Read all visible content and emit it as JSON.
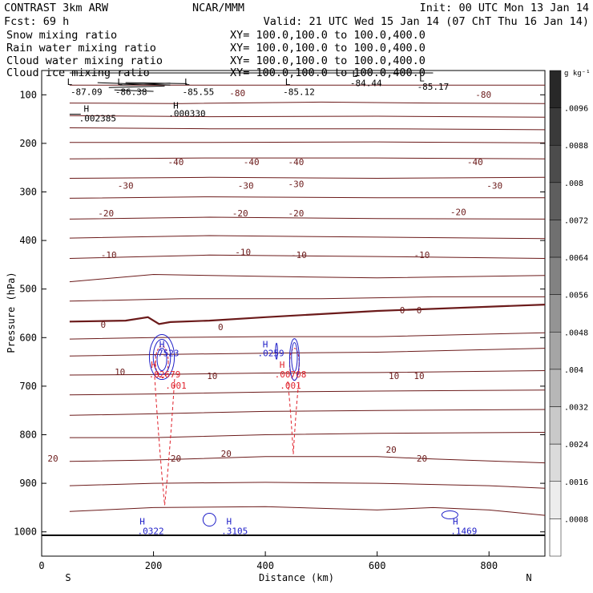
{
  "header": {
    "line1_left": "CONTRAST  3km ARW",
    "line1_center": "NCAR/MMM",
    "line1_right": "Init: 00 UTC Mon 13 Jan 14",
    "line2_left": "Fcst:   69 h",
    "line2_right": "Valid: 21 UTC Wed 15 Jan 14 (07 ChT Thu 16 Jan 14)"
  },
  "fields": [
    {
      "name": "Snow mixing ratio",
      "xy": "XY= 100.0,100.0 to 100.0,400.0",
      "color": "#000000"
    },
    {
      "name": "Rain water mixing ratio",
      "xy": "XY= 100.0,100.0 to 100.0,400.0",
      "color": "#e0202a"
    },
    {
      "name": "Cloud water mixing ratio",
      "xy": "XY= 100.0,100.0 to 100.0,400.0",
      "color": "#2020c8"
    },
    {
      "name": "Cloud ice mixing ratio",
      "xy": "XY= 100.0,100.0 to 100.0,400.0",
      "color": "#000000"
    }
  ],
  "colorbar": {
    "unit": "g kg⁻¹",
    "labels": [
      ".0096",
      ".0088",
      ".008",
      ".0072",
      ".0064",
      ".0056",
      ".0048",
      ".004",
      ".0032",
      ".0024",
      ".0016",
      ".0008"
    ]
  },
  "colors": {
    "temperature": "#6b1a1a",
    "rain": "#e0202a",
    "cloud_water": "#2020c8",
    "cloud_ice": "#000000"
  },
  "chart_data": {
    "type": "contour",
    "xlabel": "Distance (km)",
    "ylabel": "Pressure (hPa)",
    "xlim": [
      0,
      900
    ],
    "ylim": [
      1050,
      50
    ],
    "xticks": [
      0,
      200,
      400,
      600,
      800
    ],
    "yticks": [
      100,
      200,
      300,
      400,
      500,
      600,
      700,
      800,
      900,
      1000
    ],
    "x_endpoints": {
      "left": "S",
      "right": "N"
    },
    "temperature_contours": [
      {
        "p": [
          [
            50,
            80
          ],
          [
            900,
            80
          ]
        ]
      },
      {
        "p": [
          [
            50,
            117
          ],
          [
            250,
            118
          ],
          [
            500,
            115
          ],
          [
            700,
            117
          ],
          [
            900,
            118
          ]
        ]
      },
      {
        "p": [
          [
            50,
            143
          ],
          [
            300,
            145
          ],
          [
            600,
            144
          ],
          [
            900,
            146
          ]
        ]
      },
      {
        "p": [
          [
            50,
            168
          ],
          [
            300,
            170
          ],
          [
            600,
            170
          ],
          [
            900,
            172
          ]
        ]
      },
      {
        "p": [
          [
            50,
            198
          ],
          [
            300,
            198
          ],
          [
            600,
            197
          ],
          [
            900,
            199
          ]
        ]
      },
      {
        "p": [
          [
            50,
            232
          ],
          [
            300,
            230
          ],
          [
            600,
            230
          ],
          [
            900,
            232
          ]
        ]
      },
      {
        "p": [
          [
            50,
            272
          ],
          [
            300,
            270
          ],
          [
            600,
            272
          ],
          [
            900,
            270
          ]
        ]
      },
      {
        "p": [
          [
            50,
            313
          ],
          [
            300,
            310
          ],
          [
            600,
            312
          ],
          [
            900,
            312
          ]
        ]
      },
      {
        "p": [
          [
            50,
            356
          ],
          [
            300,
            352
          ],
          [
            600,
            355
          ],
          [
            900,
            356
          ]
        ]
      },
      {
        "p": [
          [
            50,
            395
          ],
          [
            300,
            390
          ],
          [
            600,
            393
          ],
          [
            900,
            396
          ]
        ]
      },
      {
        "p": [
          [
            50,
            437
          ],
          [
            300,
            430
          ],
          [
            600,
            433
          ],
          [
            900,
            437
          ]
        ]
      },
      {
        "p": [
          [
            50,
            485
          ],
          [
            200,
            470
          ],
          [
            400,
            474
          ],
          [
            600,
            477
          ],
          [
            900,
            472
          ]
        ]
      },
      {
        "p": [
          [
            50,
            525
          ],
          [
            250,
            520
          ],
          [
            500,
            520
          ],
          [
            700,
            516
          ],
          [
            900,
            516
          ]
        ]
      },
      {
        "p": [
          [
            50,
            567
          ],
          [
            150,
            565
          ],
          [
            190,
            558
          ],
          [
            210,
            572
          ],
          [
            230,
            568
          ],
          [
            300,
            565
          ],
          [
            400,
            558
          ],
          [
            600,
            545
          ],
          [
            900,
            532
          ]
        ],
        "thick": true
      },
      {
        "p": [
          [
            50,
            603
          ],
          [
            200,
            600
          ],
          [
            400,
            598
          ],
          [
            600,
            598
          ],
          [
            900,
            590
          ]
        ]
      },
      {
        "p": [
          [
            50,
            638
          ],
          [
            200,
            635
          ],
          [
            400,
            632
          ],
          [
            600,
            630
          ],
          [
            900,
            622
          ]
        ]
      },
      {
        "p": [
          [
            50,
            677
          ],
          [
            200,
            676
          ],
          [
            400,
            673
          ],
          [
            600,
            672
          ],
          [
            900,
            668
          ]
        ]
      },
      {
        "p": [
          [
            50,
            718
          ],
          [
            200,
            716
          ],
          [
            400,
            712
          ],
          [
            600,
            710
          ],
          [
            900,
            708
          ]
        ]
      },
      {
        "p": [
          [
            50,
            760
          ],
          [
            200,
            757
          ],
          [
            400,
            752
          ],
          [
            600,
            750
          ],
          [
            900,
            748
          ]
        ]
      },
      {
        "p": [
          [
            50,
            806
          ],
          [
            200,
            806
          ],
          [
            400,
            800
          ],
          [
            600,
            797
          ],
          [
            900,
            795
          ]
        ]
      },
      {
        "p": [
          [
            50,
            855
          ],
          [
            200,
            852
          ],
          [
            400,
            845
          ],
          [
            600,
            845
          ],
          [
            700,
            850
          ],
          [
            900,
            858
          ]
        ]
      },
      {
        "p": [
          [
            50,
            905
          ],
          [
            200,
            900
          ],
          [
            400,
            898
          ],
          [
            600,
            900
          ],
          [
            800,
            905
          ],
          [
            900,
            910
          ]
        ]
      },
      {
        "p": [
          [
            50,
            958
          ],
          [
            200,
            950
          ],
          [
            400,
            948
          ],
          [
            600,
            955
          ],
          [
            700,
            950
          ],
          [
            800,
            955
          ],
          [
            900,
            966
          ]
        ]
      }
    ],
    "temperature_labels": [
      {
        "t": "-80",
        "x": 350,
        "y": 103
      },
      {
        "t": "-80",
        "x": 790,
        "y": 106
      },
      {
        "t": "-40",
        "x": 240,
        "y": 245
      },
      {
        "t": "-40",
        "x": 375,
        "y": 245
      },
      {
        "t": "-40",
        "x": 455,
        "y": 245
      },
      {
        "t": "-40",
        "x": 775,
        "y": 245
      },
      {
        "t": "-30",
        "x": 150,
        "y": 293
      },
      {
        "t": "-30",
        "x": 365,
        "y": 293
      },
      {
        "t": "-30",
        "x": 455,
        "y": 290
      },
      {
        "t": "-30",
        "x": 810,
        "y": 293
      },
      {
        "t": "-20",
        "x": 115,
        "y": 350
      },
      {
        "t": "-20",
        "x": 355,
        "y": 350
      },
      {
        "t": "-20",
        "x": 455,
        "y": 350
      },
      {
        "t": "-20",
        "x": 745,
        "y": 348
      },
      {
        "t": "-10",
        "x": 120,
        "y": 436
      },
      {
        "t": "-10",
        "x": 360,
        "y": 430
      },
      {
        "t": "-10",
        "x": 460,
        "y": 436
      },
      {
        "t": "-10",
        "x": 680,
        "y": 436
      },
      {
        "t": "0",
        "x": 110,
        "y": 580
      },
      {
        "t": "0",
        "x": 320,
        "y": 585
      },
      {
        "t": "0",
        "x": 645,
        "y": 550
      },
      {
        "t": "0",
        "x": 675,
        "y": 550
      },
      {
        "t": "10",
        "x": 140,
        "y": 677
      },
      {
        "t": "10",
        "x": 305,
        "y": 685
      },
      {
        "t": "10",
        "x": 630,
        "y": 685
      },
      {
        "t": "10",
        "x": 675,
        "y": 685
      },
      {
        "t": "20",
        "x": 20,
        "y": 855
      },
      {
        "t": "20",
        "x": 240,
        "y": 855
      },
      {
        "t": "20",
        "x": 330,
        "y": 845
      },
      {
        "t": "20",
        "x": 625,
        "y": 837
      },
      {
        "t": "20",
        "x": 680,
        "y": 855
      }
    ],
    "snow_labels": [
      {
        "t": "L",
        "x": 50,
        "y": 80
      },
      {
        "t": "-87.09",
        "x": 80,
        "y": 100
      },
      {
        "t": "L",
        "x": 140,
        "y": 80
      },
      {
        "t": "-86.38",
        "x": 160,
        "y": 100
      },
      {
        "t": "L",
        "x": 260,
        "y": 80
      },
      {
        "t": "-85.55",
        "x": 280,
        "y": 100
      },
      {
        "t": "L",
        "x": 440,
        "y": 80
      },
      {
        "t": "-85.12",
        "x": 460,
        "y": 100
      },
      {
        "t": "L",
        "x": 560,
        "y": 63
      },
      {
        "t": "-84.44",
        "x": 580,
        "y": 82
      },
      {
        "t": "L",
        "x": 680,
        "y": 72
      },
      {
        "t": "-85.17",
        "x": 700,
        "y": 90
      },
      {
        "t": "H",
        "x": 80,
        "y": 135
      },
      {
        "t": "H",
        "x": 240,
        "y": 128
      }
    ],
    "snow_values": [
      {
        "t": ".002385",
        "x": 100,
        "y": 155
      },
      {
        "t": ".000330",
        "x": 260,
        "y": 145
      }
    ],
    "rain_labels": [
      {
        "t": "H",
        "x": 200,
        "y": 662
      },
      {
        "t": "H",
        "x": 430,
        "y": 662
      },
      {
        "t": ".001",
        "x": 240,
        "y": 705
      },
      {
        "t": ".001",
        "x": 445,
        "y": 705
      }
    ],
    "rain_values": [
      {
        "t": ".02679",
        "x": 220,
        "y": 682
      },
      {
        "t": ".00708",
        "x": 445,
        "y": 682
      }
    ],
    "cloud_water_labels": [
      {
        "t": "H",
        "x": 215,
        "y": 620
      },
      {
        "t": "H",
        "x": 400,
        "y": 620
      },
      {
        "t": "H",
        "x": 180,
        "y": 985
      },
      {
        "t": "H",
        "x": 335,
        "y": 985
      },
      {
        "t": "H",
        "x": 740,
        "y": 985
      }
    ],
    "cloud_water_values": [
      {
        "t": ".7523",
        "x": 222,
        "y": 638
      },
      {
        "t": ".0259",
        "x": 410,
        "y": 638
      },
      {
        "t": ".0322",
        "x": 195,
        "y": 1005
      },
      {
        "t": ".3105",
        "x": 345,
        "y": 1005
      },
      {
        "t": ".1469",
        "x": 755,
        "y": 1005
      }
    ]
  }
}
